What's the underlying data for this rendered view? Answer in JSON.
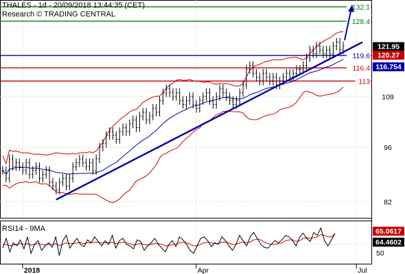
{
  "header": {
    "line1": "THALES - 1d - 20/09/2018 13:44:35 (CET)",
    "line2": "Research © TRADING CENTRAL"
  },
  "rsi_panel": {
    "label": "RSI14 - 9MA",
    "ytick": "50",
    "badge_rsi": "65.0617",
    "badge_ma": "64.4602",
    "rsi_color": "#000000",
    "ma_color": "#cc0000",
    "rsi_values": [
      45,
      58,
      40,
      52,
      48,
      56,
      44,
      60,
      38,
      50,
      55,
      42,
      48,
      52,
      46,
      60,
      35,
      55,
      62,
      45,
      52,
      58,
      50,
      47,
      56,
      52,
      60,
      54,
      48,
      55,
      50,
      62,
      45,
      55,
      58,
      50,
      48,
      44,
      56,
      54,
      42,
      48,
      52,
      58,
      50,
      45,
      40,
      50,
      55,
      47,
      60,
      56,
      50,
      42,
      38,
      48,
      58,
      60,
      55,
      47,
      52,
      50,
      60,
      55,
      48,
      42,
      50,
      62,
      55,
      48,
      60,
      66,
      58,
      50,
      46,
      45,
      50,
      55,
      52,
      56,
      62,
      60,
      55,
      48,
      60,
      65,
      58,
      54,
      66,
      62,
      72,
      55,
      48,
      56,
      65
    ],
    "ma_values": [
      50,
      50,
      48,
      49,
      50,
      51,
      50,
      51,
      49,
      50,
      51,
      50,
      49,
      50,
      50,
      51,
      48,
      50,
      52,
      51,
      51,
      52,
      52,
      51,
      52,
      52,
      53,
      53,
      52,
      52,
      52,
      53,
      51,
      52,
      53,
      52,
      51,
      49,
      50,
      51,
      50,
      49,
      50,
      51,
      51,
      50,
      48,
      48,
      50,
      50,
      52,
      53,
      52,
      50,
      48,
      48,
      50,
      52,
      53,
      52,
      51,
      51,
      53,
      53,
      52,
      50,
      50,
      52,
      53,
      52,
      53,
      56,
      57,
      56,
      53,
      51,
      50,
      50,
      51,
      52,
      55,
      56,
      56,
      54,
      55,
      58,
      59,
      58,
      59,
      60,
      63,
      62,
      60,
      60,
      64
    ]
  },
  "chart_data": {
    "type": "candlestick",
    "title": "THALES - 1d - 20/09/2018 13:44:35 (CET)",
    "x_ticks": [
      "2018",
      "Apr",
      "Jul"
    ],
    "y_ticks": [
      82,
      96,
      109
    ],
    "ylim": [
      78,
      133.5
    ],
    "levels": [
      {
        "value": 132.1,
        "label": "132.1",
        "color": "#008000"
      },
      {
        "value": 128.4,
        "label": "128.4",
        "color": "#008000"
      },
      {
        "value": 119.6,
        "label": "119.6",
        "color": "#0000aa"
      },
      {
        "value": 116.4,
        "label": "116.4",
        "color": "#cc0000"
      },
      {
        "value": 113,
        "label": "113",
        "color": "#cc0000"
      }
    ],
    "badges": [
      {
        "value": 121.95,
        "label": "121.95",
        "color": "#000000"
      },
      {
        "value": 120.27,
        "label": "120.27",
        "color": "#cc0000"
      },
      {
        "value": 116.754,
        "label": "116.754",
        "color": "#0000aa"
      }
    ],
    "trendline": {
      "from_index": 16,
      "from_price": 82.5,
      "to_index": 130,
      "to_price": 123
    },
    "forecast_arrow": {
      "from_index": 122,
      "from_price": 123.5,
      "to_index": 127,
      "to_price": 132.5
    },
    "close": [
      90,
      88,
      93,
      91,
      92,
      91,
      90,
      92,
      89,
      90,
      91,
      88,
      89,
      90,
      87,
      86,
      85,
      87,
      88,
      86,
      88,
      91,
      92,
      93,
      92,
      91,
      92,
      90,
      93,
      96,
      97,
      99,
      100,
      99,
      98,
      100,
      101,
      100,
      102,
      103,
      101,
      104,
      105,
      103,
      104,
      106,
      105,
      108,
      110,
      111,
      110,
      109,
      110,
      108,
      107,
      108,
      109,
      107,
      106,
      108,
      109,
      110,
      108,
      107,
      109,
      111,
      110,
      109,
      108,
      107,
      108,
      110,
      112,
      116,
      117,
      115,
      114,
      113,
      115,
      114,
      113,
      114,
      112,
      113,
      114,
      115,
      114,
      115,
      116,
      116,
      117,
      119,
      121,
      120,
      122,
      121,
      120,
      121,
      120,
      122,
      123,
      121,
      122
    ]
  }
}
